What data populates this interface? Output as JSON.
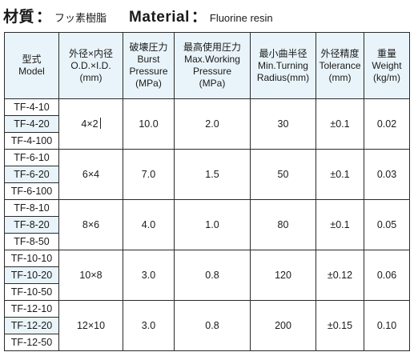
{
  "title": {
    "jp_label": "材質",
    "jp_colon": "：",
    "jp_value": "フッ素樹脂",
    "en_label": "Material",
    "en_colon": "：",
    "en_value": "Fluorine resin"
  },
  "table": {
    "headers": [
      {
        "lines": [
          "型式",
          "Model"
        ]
      },
      {
        "lines": [
          "外径×内径",
          "O.D.×I.D.",
          "(mm)"
        ]
      },
      {
        "lines": [
          "破壊圧力",
          "Burst",
          "Pressure",
          "(MPa)"
        ]
      },
      {
        "lines": [
          "最高使用圧力",
          "Max.Working",
          "Pressure",
          "(MPa)"
        ]
      },
      {
        "lines": [
          "最小曲半径",
          "Min.Turning",
          "Radius(mm)"
        ]
      },
      {
        "lines": [
          "外径精度",
          "Tolerance",
          "(mm)"
        ]
      },
      {
        "lines": [
          "重量",
          "Weight",
          "(kg/m)"
        ]
      }
    ],
    "groups": [
      {
        "models": [
          "TF-4-10",
          "TF-4-20",
          "TF-4-100"
        ],
        "size": "4×2",
        "burst": "10.0",
        "max_working": "2.0",
        "radius": "30",
        "tolerance": "±0.1",
        "weight": "0.02"
      },
      {
        "models": [
          "TF-6-10",
          "TF-6-20",
          "TF-6-100"
        ],
        "size": "6×4",
        "burst": "7.0",
        "max_working": "1.5",
        "radius": "50",
        "tolerance": "±0.1",
        "weight": "0.03"
      },
      {
        "models": [
          "TF-8-10",
          "TF-8-20",
          "TF-8-50"
        ],
        "size": "8×6",
        "burst": "4.0",
        "max_working": "1.0",
        "radius": "80",
        "tolerance": "±0.1",
        "weight": "0.05"
      },
      {
        "models": [
          "TF-10-10",
          "TF-10-20",
          "TF-10-50"
        ],
        "size": "10×8",
        "burst": "3.0",
        "max_working": "0.8",
        "radius": "120",
        "tolerance": "±0.12",
        "weight": "0.06"
      },
      {
        "models": [
          "TF-12-10",
          "TF-12-20",
          "TF-12-50"
        ],
        "size": "12×10",
        "burst": "3.0",
        "max_working": "0.8",
        "radius": "200",
        "tolerance": "±0.15",
        "weight": "0.10"
      }
    ]
  },
  "colors": {
    "header_bg": "#e9f4fa",
    "border": "#2a2a2a",
    "text": "#1a1a1a"
  }
}
